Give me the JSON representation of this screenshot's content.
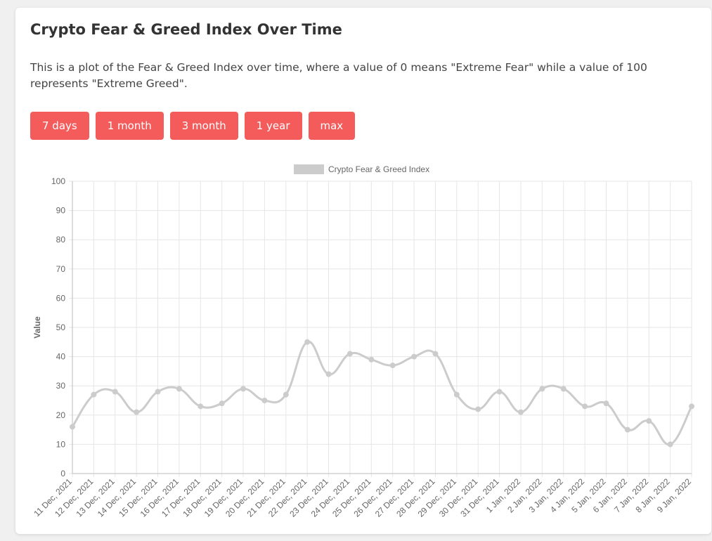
{
  "header": {
    "title": "Crypto Fear & Greed Index Over Time",
    "description": "This is a plot of the Fear & Greed Index over time, where a value of 0 means \"Extreme Fear\" while a value of 100 represents \"Extreme Greed\"."
  },
  "range_buttons": [
    {
      "label": "7 days"
    },
    {
      "label": "1 month"
    },
    {
      "label": "3 month"
    },
    {
      "label": "1 year"
    },
    {
      "label": "max"
    }
  ],
  "colors": {
    "button": "#f45b5b",
    "series": "#cccccc",
    "grid": "#e6e6e6"
  },
  "chart_data": {
    "type": "line",
    "title": "",
    "xlabel": "",
    "ylabel": "Value",
    "ylim": [
      0,
      100
    ],
    "yticks": [
      0,
      10,
      20,
      30,
      40,
      50,
      60,
      70,
      80,
      90,
      100
    ],
    "grid": true,
    "legend_position": "top",
    "categories": [
      "11 Dec, 2021",
      "12 Dec, 2021",
      "13 Dec, 2021",
      "14 Dec, 2021",
      "15 Dec, 2021",
      "16 Dec, 2021",
      "17 Dec, 2021",
      "18 Dec, 2021",
      "19 Dec, 2021",
      "20 Dec, 2021",
      "21 Dec, 2021",
      "22 Dec, 2021",
      "23 Dec, 2021",
      "24 Dec, 2021",
      "25 Dec, 2021",
      "26 Dec, 2021",
      "27 Dec, 2021",
      "28 Dec, 2021",
      "29 Dec, 2021",
      "30 Dec, 2021",
      "31 Dec, 2021",
      "1 Jan, 2022",
      "2 Jan, 2022",
      "3 Jan, 2022",
      "4 Jan, 2022",
      "5 Jan, 2022",
      "6 Jan, 2022",
      "7 Jan, 2022",
      "8 Jan, 2022",
      "9 Jan, 2022"
    ],
    "series": [
      {
        "name": "Crypto Fear & Greed Index",
        "values": [
          16,
          27,
          28,
          21,
          28,
          29,
          23,
          24,
          29,
          25,
          27,
          45,
          34,
          41,
          39,
          37,
          40,
          41,
          27,
          22,
          28,
          21,
          29,
          29,
          23,
          24,
          15,
          18,
          10,
          23
        ]
      }
    ]
  }
}
